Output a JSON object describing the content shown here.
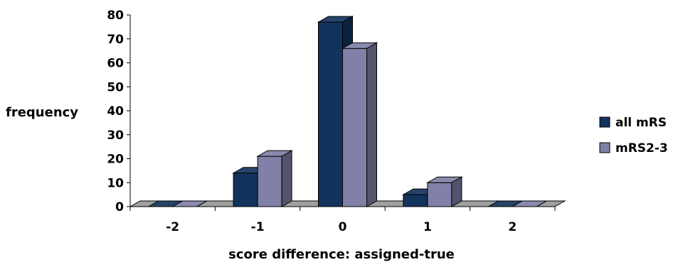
{
  "chart_data": {
    "type": "bar",
    "style": "3d-clustered-column",
    "categories": [
      "-2",
      "-1",
      "0",
      "1",
      "2"
    ],
    "series": [
      {
        "name": "all mRS",
        "values": [
          0,
          14,
          77,
          5,
          0
        ],
        "color": "#12345C"
      },
      {
        "name": "mRS2-3",
        "values": [
          0,
          21,
          66,
          10,
          0
        ],
        "color": "#8080A8"
      }
    ],
    "xlabel": "score difference:  assigned-true",
    "ylabel": "frequency",
    "ylim": [
      0,
      80
    ],
    "yticks": [
      0,
      10,
      20,
      30,
      40,
      50,
      60,
      70,
      80
    ],
    "grid": false,
    "legend_position": "right",
    "floor_color": "#A0A0A0"
  }
}
